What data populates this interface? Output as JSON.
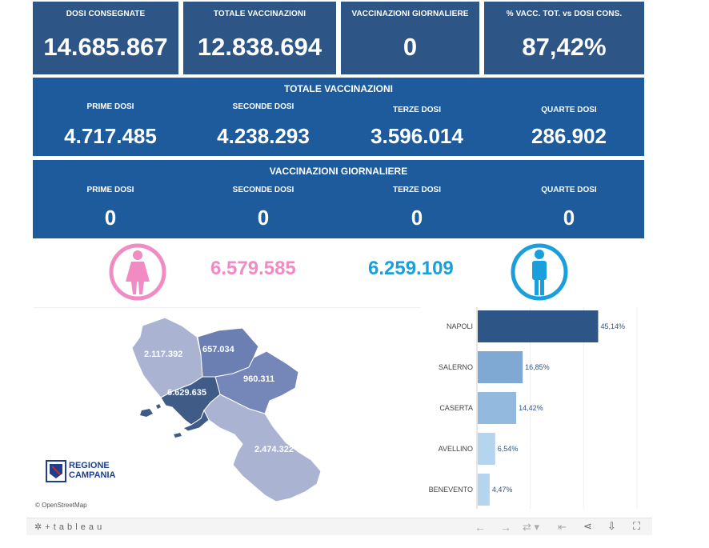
{
  "kpis": [
    {
      "label": "DOSI CONSEGNATE",
      "value": "14.685.867"
    },
    {
      "label": "TOTALE VACCINAZIONI",
      "value": "12.838.694"
    },
    {
      "label": "VACCINAZIONI GIORNALIERE",
      "value": "0"
    },
    {
      "label": "% VACC. TOT. vs DOSI CONS.",
      "value": "87,42%"
    }
  ],
  "totale": {
    "title": "TOTALE VACCINAZIONI",
    "items": [
      {
        "label": "PRIME DOSI",
        "value": "4.717.485"
      },
      {
        "label": "SECONDE DOSI",
        "value": "4.238.293"
      },
      {
        "label": "TERZE DOSI",
        "value": "3.596.014"
      },
      {
        "label": "QUARTE DOSI",
        "value": "286.902"
      }
    ]
  },
  "giornaliere": {
    "title": "VACCINAZIONI GIORNALIERE",
    "items": [
      {
        "label": "PRIME DOSI",
        "value": "0"
      },
      {
        "label": "SECONDE DOSI",
        "value": "0"
      },
      {
        "label": "TERZE DOSI",
        "value": "0"
      },
      {
        "label": "QUARTE DOSI",
        "value": "0"
      }
    ]
  },
  "gender": {
    "female_value": "6.579.585",
    "male_value": "6.259.109",
    "female_color": "#f08cc3",
    "male_color": "#1a9fdc",
    "female_icon": "female-person-icon",
    "male_icon": "male-person-icon"
  },
  "map": {
    "provinces": [
      {
        "name": "Caserta",
        "value": "2.117.392"
      },
      {
        "name": "Benevento",
        "value": "657.034"
      },
      {
        "name": "Avellino",
        "value": "960.311"
      },
      {
        "name": "Napoli",
        "value": "6.629.635"
      },
      {
        "name": "Salerno",
        "value": "2.474.322"
      }
    ],
    "logo_line1": "REGIONE",
    "logo_line2": "CAMPANIA",
    "attribution": "© OpenStreetMap"
  },
  "chart_data": {
    "type": "bar",
    "orientation": "horizontal",
    "categories": [
      "NAPOLI",
      "SALERNO",
      "CASERTA",
      "AVELLINO",
      "BENEVENTO"
    ],
    "values": [
      45.14,
      16.85,
      14.42,
      6.54,
      4.47
    ],
    "labels": [
      "45,14%",
      "16,85%",
      "14,42%",
      "6,54%",
      "4,47%"
    ],
    "colors": [
      "#2d5585",
      "#7fa8d3",
      "#93b9df",
      "#b5d4ee",
      "#b5d4ee"
    ],
    "xlim": [
      0,
      60
    ]
  },
  "toolbar": {
    "brand": "+ t a b l e a u",
    "icons": [
      "undo-icon",
      "redo-icon",
      "revert-icon",
      "reset-icon",
      "share-icon",
      "download-icon",
      "fullscreen-icon"
    ]
  }
}
